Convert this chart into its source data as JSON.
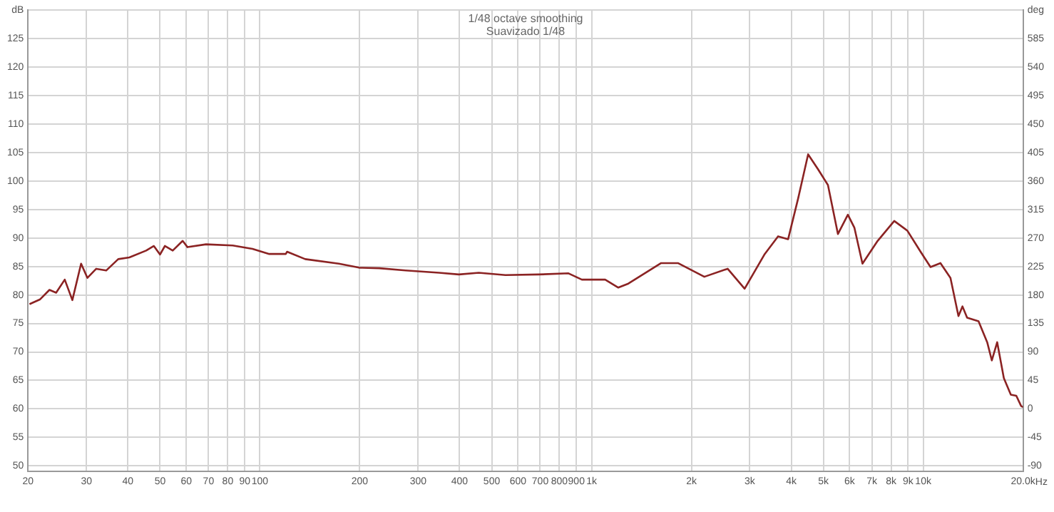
{
  "chart_data": {
    "type": "line",
    "title": "1/48 octave smoothing",
    "subtitle": "Suavizado 1/48",
    "x": [
      20.2,
      21.7,
      23.2,
      24.3,
      25.8,
      27.2,
      28.9,
      30.2,
      32.1,
      34.4,
      37.4,
      40.4,
      45.4,
      47.9,
      50,
      51.7,
      54.6,
      58.5,
      60.5,
      68.8,
      82.8,
      95,
      106.7,
      119.7,
      120.8,
      137,
      173,
      199,
      229,
      275,
      347,
      398,
      457,
      550,
      692,
      852,
      935,
      1099,
      1204,
      1291,
      1621,
      1821,
      2188,
      2572,
      2894,
      3328,
      3650,
      3914,
      4198,
      4497,
      4816,
      5161,
      5531,
      5926,
      6202,
      6558,
      7286,
      8177,
      8953,
      9817,
      10520,
      11270,
      12080,
      12770,
      13130,
      13560,
      14680,
      15590,
      16100,
      16710,
      17500,
      18370,
      19080,
      19730,
      20000
    ],
    "series": [
      {
        "color": "#8b2323",
        "values": [
          78.4,
          79.2,
          80.9,
          80.4,
          82.7,
          79.1,
          85.5,
          83,
          84.6,
          84.3,
          86.3,
          86.6,
          87.8,
          88.6,
          87.1,
          88.6,
          87.8,
          89.5,
          88.4,
          88.9,
          88.7,
          88.1,
          87.2,
          87.2,
          87.6,
          86.3,
          85.5,
          84.8,
          84.7,
          84.3,
          83.9,
          83.6,
          83.9,
          83.5,
          83.6,
          83.8,
          82.7,
          82.7,
          81.3,
          82,
          85.6,
          85.6,
          83.2,
          84.6,
          81.1,
          87.2,
          90.3,
          89.8,
          97,
          104.7,
          102.1,
          99.3,
          90.7,
          94.1,
          91.8,
          85.5,
          89.5,
          93,
          91.3,
          87.6,
          84.9,
          85.6,
          83,
          76.3,
          78,
          76,
          75.4,
          71.7,
          68.5,
          71.7,
          65.4,
          62.5,
          62.3,
          60.5,
          60.3
        ]
      }
    ],
    "log": "x",
    "xlim": [
      20,
      20000
    ],
    "xticks": [
      20,
      30,
      40,
      50,
      60,
      70,
      80,
      90,
      100,
      200,
      300,
      400,
      500,
      600,
      700,
      800,
      900,
      {
        "value": 1000,
        "label": "1k"
      },
      {
        "value": 2000,
        "label": "2k"
      },
      {
        "value": 3000,
        "label": "3k"
      },
      {
        "value": 4000,
        "label": "4k"
      },
      {
        "value": 5000,
        "label": "5k"
      },
      {
        "value": 6000,
        "label": "6k"
      },
      {
        "value": 7000,
        "label": "7k"
      },
      {
        "value": 8000,
        "label": "8k"
      },
      {
        "value": 9000,
        "label": "9k"
      },
      {
        "value": 10000,
        "label": "10k"
      },
      {
        "value": 20000,
        "label": "20.0k"
      }
    ],
    "xlabel": "Hz",
    "ylim": [
      49,
      130
    ],
    "yticks": [
      50,
      55,
      60,
      65,
      70,
      75,
      80,
      85,
      90,
      95,
      100,
      105,
      110,
      115,
      120,
      125,
      {
        "value": 130,
        "label": "dB"
      }
    ],
    "y2lim": [
      -99,
      630
    ],
    "y2ticks": [
      -90,
      -45,
      0,
      45,
      90,
      135,
      180,
      225,
      270,
      315,
      360,
      405,
      450,
      495,
      540,
      585,
      {
        "value": 630,
        "label": "deg"
      }
    ],
    "grid": true,
    "legend": false,
    "marker": "none",
    "line_style": "solid"
  }
}
